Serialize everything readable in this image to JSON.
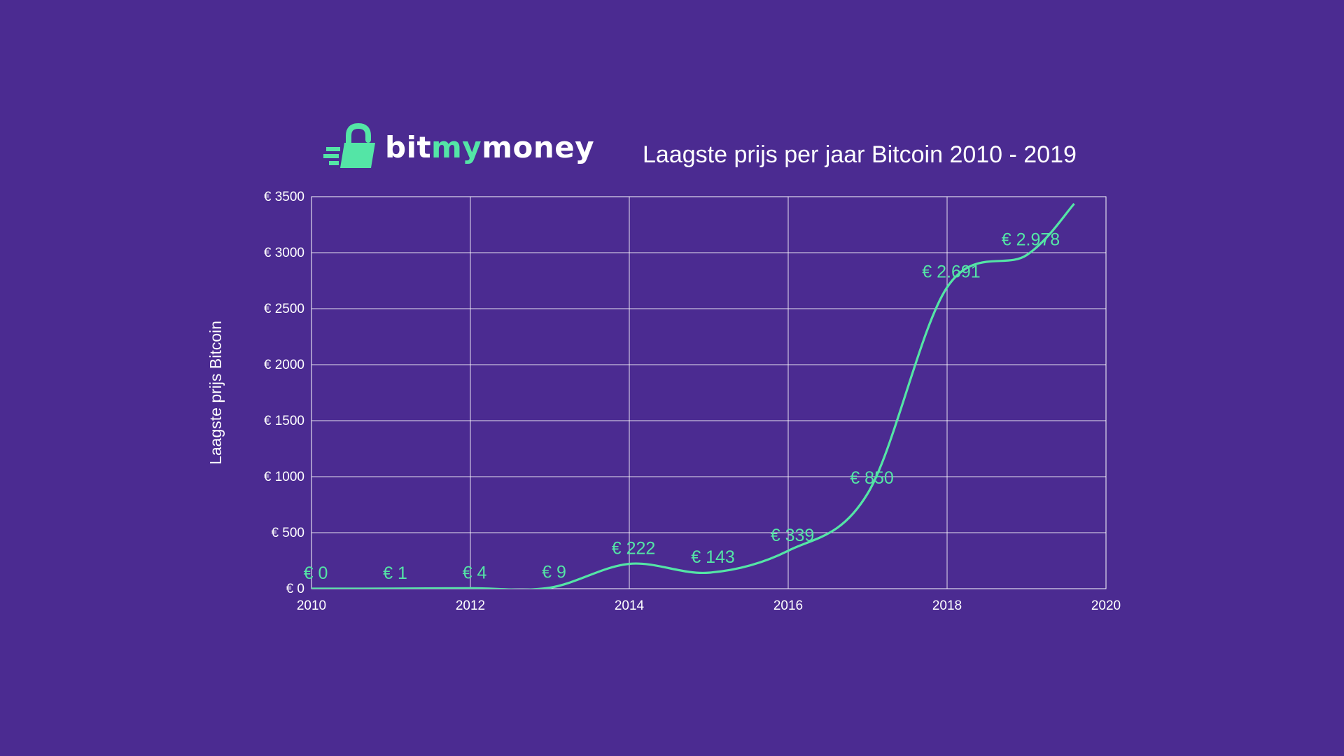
{
  "colors": {
    "background": "#4b2b91",
    "grid": "#ffffff",
    "line": "#54e5a6",
    "text": "#ffffff"
  },
  "logo": {
    "part1": "bit",
    "part2": "my",
    "part3": "money",
    "icon": "padlock-speed-icon"
  },
  "chart_data": {
    "type": "line",
    "title": "Laagste prijs per jaar Bitcoin 2010 - 2019",
    "xlabel": "",
    "ylabel": "Laagste prijs Bitcoin",
    "xlim": [
      2010,
      2020
    ],
    "ylim": [
      0,
      3500
    ],
    "x_ticks": [
      2010,
      2012,
      2014,
      2016,
      2018,
      2020
    ],
    "x_tick_labels": [
      "2010",
      "2012",
      "2014",
      "2016",
      "2018",
      "2020"
    ],
    "y_ticks": [
      0,
      500,
      1000,
      1500,
      2000,
      2500,
      3000,
      3500
    ],
    "y_tick_labels": [
      "€ 0",
      "€ 500",
      "€ 1000",
      "€ 1500",
      "€ 2000",
      "€ 2500",
      "€ 3000",
      "€ 3500"
    ],
    "grid": true,
    "legend": "none",
    "x": [
      2010,
      2011,
      2012,
      2013,
      2014,
      2015,
      2016,
      2017,
      2018,
      2019
    ],
    "values": [
      0,
      1,
      4,
      9,
      222,
      143,
      339,
      850,
      2691,
      2978
    ],
    "data_labels": [
      "€ 0",
      "€ 1",
      "€ 4",
      "€ 9",
      "€ 222",
      "€ 143",
      "€ 339",
      "€ 850",
      "€ 2.691",
      "€ 2.978"
    ]
  }
}
